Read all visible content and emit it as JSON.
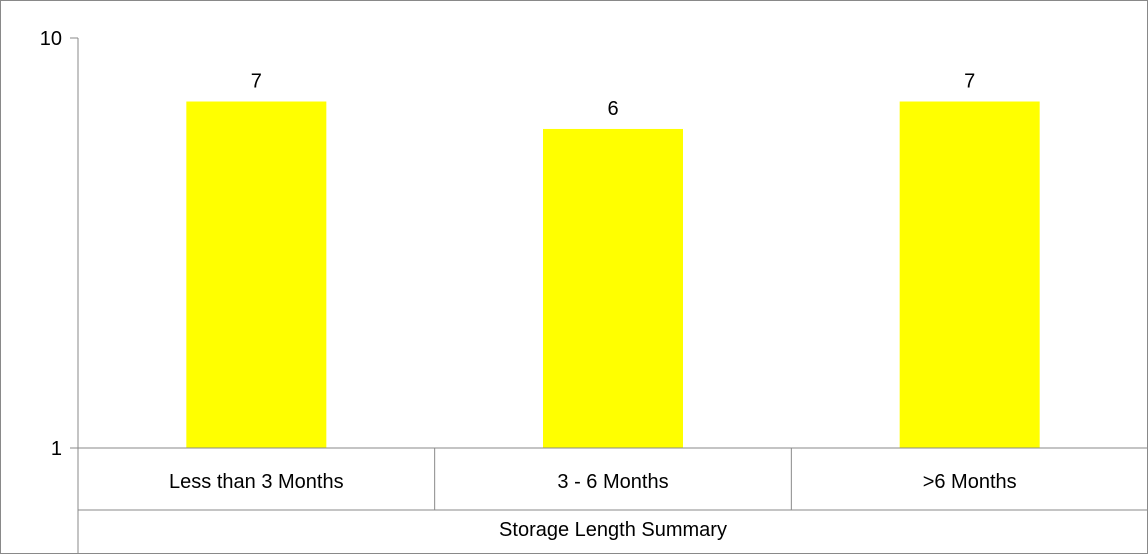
{
  "colors": {
    "bar": "#ffff00",
    "axis": "#898989",
    "frame": "#898989",
    "text": "#000000"
  },
  "chart_data": {
    "type": "bar",
    "scale": "log",
    "categories": [
      "Less than 3 Months",
      "3 - 6 Months",
      ">6 Months"
    ],
    "values": [
      7,
      6,
      7
    ],
    "data_labels": [
      "7",
      "6",
      "7"
    ],
    "ylim": [
      1,
      10
    ],
    "y_ticks": [
      1,
      10
    ],
    "y_tick_labels": [
      "1",
      "10"
    ],
    "xlabel": "Storage Length Summary",
    "ylabel": "",
    "title": "",
    "grid": false,
    "legend": "none"
  }
}
